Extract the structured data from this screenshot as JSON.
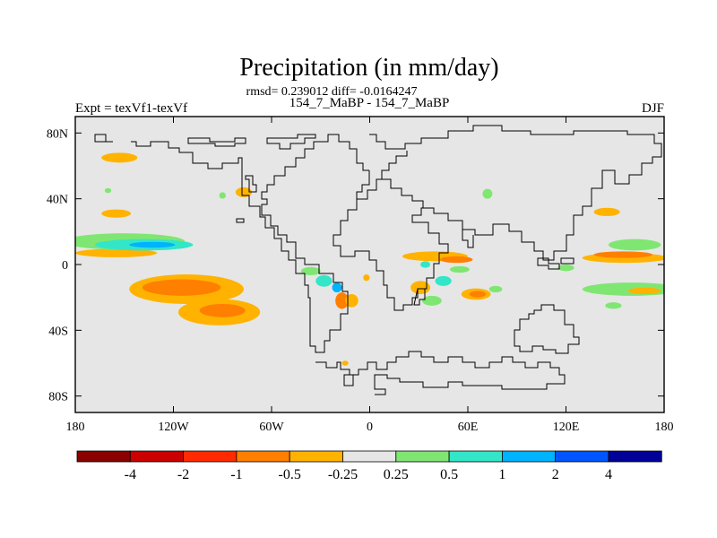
{
  "chart_data": {
    "type": "heatmap",
    "title": "Precipitation (in mm/day)",
    "stats": "rmsd= 0.239012 diff= -0.0164247",
    "subtitle": "154_7_MaBP - 154_7_MaBP",
    "left_label": "Expt = texVf1-texVf",
    "right_label": "DJF",
    "xlim": [
      -180,
      180
    ],
    "ylim": [
      -90,
      90
    ],
    "x_ticks": [
      {
        "value": -180,
        "label": "180"
      },
      {
        "value": -120,
        "label": "120W"
      },
      {
        "value": -60,
        "label": "60W"
      },
      {
        "value": 0,
        "label": "0"
      },
      {
        "value": 60,
        "label": "60E"
      },
      {
        "value": 120,
        "label": "120E"
      },
      {
        "value": 180,
        "label": "180"
      }
    ],
    "y_ticks": [
      {
        "value": 80,
        "label": "80N"
      },
      {
        "value": 40,
        "label": "40N"
      },
      {
        "value": 0,
        "label": "0"
      },
      {
        "value": -40,
        "label": "40S"
      },
      {
        "value": -80,
        "label": "80S"
      }
    ],
    "colorbar": {
      "colors": [
        "#8b0000",
        "#cc0000",
        "#ff2a00",
        "#ff7f00",
        "#ffb300",
        "#e6e6e6",
        "#80e672",
        "#33e6c8",
        "#00b3ff",
        "#0055ff",
        "#000099"
      ],
      "labels": [
        "-4",
        "-2",
        "-1",
        "-0.5",
        "-0.25",
        "0.25",
        "0.5",
        "1",
        "2",
        "4"
      ]
    },
    "anomaly_regions": [
      {
        "lon": -153,
        "lat": 65,
        "rlon": 11,
        "rlat": 3,
        "level": "-0.25"
      },
      {
        "lon": -155,
        "lat": 7,
        "rlon": 25,
        "rlat": 2.6,
        "level": "-0.25"
      },
      {
        "lon": -150,
        "lat": 14,
        "rlon": 37,
        "rlat": 5,
        "level": "0.25"
      },
      {
        "lon": -138,
        "lat": 12,
        "rlon": 30,
        "rlat": 3.5,
        "level": "0.5"
      },
      {
        "lon": -133,
        "lat": 12,
        "rlon": 14,
        "rlat": 1.8,
        "level": "1"
      },
      {
        "lon": -155,
        "lat": 31,
        "rlon": 9,
        "rlat": 2.5,
        "level": "-0.25"
      },
      {
        "lon": -112,
        "lat": -15,
        "rlon": 35,
        "rlat": 9,
        "level": "-0.25"
      },
      {
        "lon": -115,
        "lat": -14,
        "rlon": 24,
        "rlat": 5,
        "level": "-0.5"
      },
      {
        "lon": -92,
        "lat": -29,
        "rlon": 25,
        "rlat": 8,
        "level": "-0.25"
      },
      {
        "lon": -90,
        "lat": -28,
        "rlon": 14,
        "rlat": 4,
        "level": "-0.5"
      },
      {
        "lon": -77,
        "lat": 44,
        "rlon": 5,
        "rlat": 3,
        "level": "-0.25"
      },
      {
        "lon": -36,
        "lat": -4,
        "rlon": 6,
        "rlat": 2.5,
        "level": "0.25"
      },
      {
        "lon": -28,
        "lat": -10,
        "rlon": 5,
        "rlat": 3.5,
        "level": "0.5"
      },
      {
        "lon": -20,
        "lat": -14,
        "rlon": 3,
        "rlat": 3,
        "level": "1"
      },
      {
        "lon": -17,
        "lat": -22,
        "rlon": 4,
        "rlat": 5,
        "level": "-0.5"
      },
      {
        "lon": -11,
        "lat": -22,
        "rlon": 4,
        "rlat": 4,
        "level": "-0.25"
      },
      {
        "lon": 40,
        "lat": 5,
        "rlon": 20,
        "rlat": 3,
        "level": "-0.25"
      },
      {
        "lon": 53,
        "lat": 3,
        "rlon": 10,
        "rlat": 2,
        "level": "-0.5"
      },
      {
        "lon": 34,
        "lat": 0,
        "rlon": 3,
        "rlat": 2,
        "level": "0.5"
      },
      {
        "lon": 55,
        "lat": -3,
        "rlon": 6,
        "rlat": 2,
        "level": "0.25"
      },
      {
        "lon": 45,
        "lat": -10,
        "rlon": 5,
        "rlat": 3,
        "level": "0.5"
      },
      {
        "lon": 31,
        "lat": -14,
        "rlon": 6,
        "rlat": 4,
        "level": "-0.25"
      },
      {
        "lon": 38,
        "lat": -22,
        "rlon": 6,
        "rlat": 3,
        "level": "0.25"
      },
      {
        "lon": 65,
        "lat": -18,
        "rlon": 9,
        "rlat": 3.5,
        "level": "-0.25"
      },
      {
        "lon": 66,
        "lat": -18,
        "rlon": 5,
        "rlat": 2,
        "level": "-0.5"
      },
      {
        "lon": 77,
        "lat": -15,
        "rlon": 4,
        "rlat": 2,
        "level": "0.25"
      },
      {
        "lon": -2,
        "lat": -8,
        "rlon": 2,
        "rlat": 2,
        "level": "-0.25"
      },
      {
        "lon": 72,
        "lat": 43,
        "rlon": 3,
        "rlat": 3,
        "level": "0.25"
      },
      {
        "lon": 162,
        "lat": 12,
        "rlon": 16,
        "rlat": 3.5,
        "level": "0.25"
      },
      {
        "lon": 156,
        "lat": 4,
        "rlon": 26,
        "rlat": 3,
        "level": "-0.25"
      },
      {
        "lon": 155,
        "lat": 6,
        "rlon": 18,
        "rlat": 2,
        "level": "-0.5"
      },
      {
        "lon": 160,
        "lat": -15,
        "rlon": 30,
        "rlat": 4,
        "level": "0.25"
      },
      {
        "lon": 168,
        "lat": -16,
        "rlon": 10,
        "rlat": 2,
        "level": "-0.25"
      },
      {
        "lon": 145,
        "lat": 32,
        "rlon": 8,
        "rlat": 2.5,
        "level": "-0.25"
      },
      {
        "lon": 149,
        "lat": -25,
        "rlon": 5,
        "rlat": 2,
        "level": "0.25"
      },
      {
        "lon": 120,
        "lat": -2,
        "rlon": 5,
        "rlat": 2,
        "level": "0.25"
      },
      {
        "lon": -90,
        "lat": 42,
        "rlon": 2,
        "rlat": 2,
        "level": "0.25"
      },
      {
        "lon": -160,
        "lat": 45,
        "rlon": 2,
        "rlat": 1.5,
        "level": "0.25"
      },
      {
        "lon": -15,
        "lat": -60,
        "rlon": 2,
        "rlat": 1.5,
        "level": "-0.25"
      }
    ]
  }
}
